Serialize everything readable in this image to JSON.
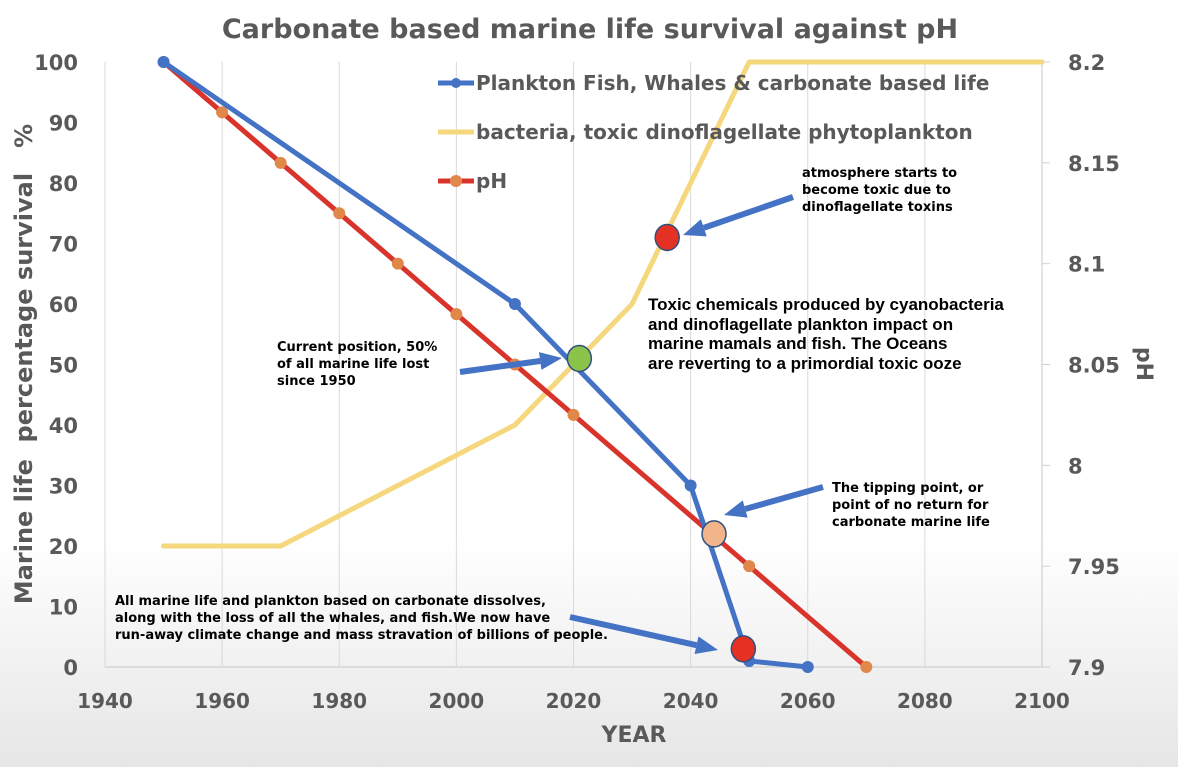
{
  "chart_data": {
    "type": "line",
    "title": "Carbonate based marine life survival against pH",
    "xlabel": "YEAR",
    "ylabel": "Marine life  percentage survival   %",
    "y2label": "pH",
    "xlim": [
      1940,
      2100
    ],
    "ylim": [
      0,
      100
    ],
    "y2lim": [
      7.9,
      8.2
    ],
    "x_ticks": [
      "1940",
      "1960",
      "1980",
      "2000",
      "2020",
      "2040",
      "2060",
      "2080",
      "2100"
    ],
    "y_ticks": [
      "0",
      "10",
      "20",
      "30",
      "40",
      "50",
      "60",
      "70",
      "80",
      "90",
      "100"
    ],
    "y2_ticks": [
      "7.9",
      "7.95",
      "8",
      "8.05",
      "8.1",
      "8.15",
      "8.2"
    ],
    "grid": "vertical",
    "legend_position": "top-center",
    "series": [
      {
        "name": "Plankton Fish, Whales & carbonate based life",
        "axis": "left",
        "color": "#4472C4",
        "markers": true,
        "x": [
          1950,
          2010,
          2040,
          2050,
          2060
        ],
        "y": [
          100,
          60,
          30,
          1,
          0
        ]
      },
      {
        "name": "bacteria, toxic dinoflagellate phytoplankton",
        "axis": "left",
        "color": "#F5D77E",
        "markers": false,
        "x": [
          1950,
          1970,
          2010,
          2030,
          2050,
          2100
        ],
        "y": [
          20,
          20,
          40,
          60,
          100,
          100
        ]
      },
      {
        "name": "pH",
        "axis": "right",
        "color": "#D9342B",
        "marker_color": "#E0874A",
        "markers": true,
        "x": [
          1950,
          1960,
          1970,
          1980,
          1990,
          2000,
          2010,
          2020,
          2030,
          2040,
          2050,
          2060,
          2070
        ],
        "y": [
          8.2,
          8.175,
          8.15,
          8.125,
          8.1,
          8.075,
          8.05,
          8.025,
          8.0,
          7.975,
          7.95,
          7.925,
          7.9
        ],
        "hidden_marker_years": [
          2030,
          2040,
          2060
        ]
      }
    ],
    "highlights": [
      {
        "name": "current-position",
        "x": 2021,
        "y": 51,
        "color": "#8BC34A"
      },
      {
        "name": "toxic-atmosphere",
        "x": 2036,
        "y": 71,
        "color": "#E53123"
      },
      {
        "name": "tipping-point",
        "x": 2044,
        "y": 22,
        "color": "#F2B48A"
      },
      {
        "name": "carbonate-collapse",
        "x": 2049,
        "y": 3,
        "color": "#E53123"
      }
    ],
    "annotations": [
      {
        "id": "current",
        "text": "Current position, 50%\nof all marine life lost\nsince 1950",
        "points_to": "current-position"
      },
      {
        "id": "atmosphere",
        "text": "atmosphere starts to\nbecome toxic due to\ndinoflagellate toxins",
        "points_to": "toxic-atmosphere"
      },
      {
        "id": "toxic",
        "text": "Toxic chemicals produced by cyanobacteria\nand dinoflagellate plankton impact on\nmarine mamals and fish. The Oceans\nare reverting to a primordial toxic ooze"
      },
      {
        "id": "tipping",
        "text": "The tipping point, or\npoint of no return for\ncarbonate marine life",
        "points_to": "tipping-point"
      },
      {
        "id": "collapse",
        "text": "All marine life and plankton based on carbonate dissolves,\nalong with the loss of all the whales, and fish.We now have\nrun-away climate change and mass stravation of billions of people.",
        "points_to": "carbonate-collapse"
      }
    ]
  }
}
